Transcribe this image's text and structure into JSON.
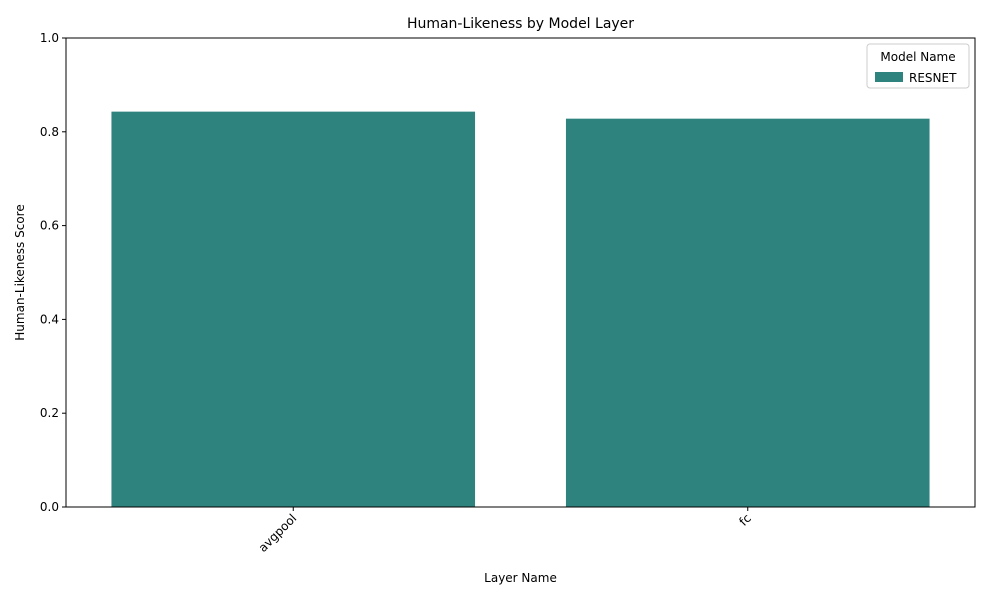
{
  "chart_data": {
    "type": "bar",
    "title": "Human-Likeness by Model Layer",
    "xlabel": "Layer Name",
    "ylabel": "Human-Likeness Score",
    "categories": [
      "avgpool",
      "fc"
    ],
    "series": [
      {
        "name": "RESNET",
        "values": [
          0.843,
          0.828
        ],
        "color": "#2e837e"
      }
    ],
    "ylim": [
      0,
      1.0
    ],
    "yticks": [
      0.0,
      0.2,
      0.4,
      0.6,
      0.8,
      1.0
    ],
    "ytick_labels": [
      "0.0",
      "0.2",
      "0.4",
      "0.6",
      "0.8",
      "1.0"
    ],
    "grid": false,
    "legend": {
      "title": "Model Name",
      "placement": "top-right"
    },
    "xtick_rotation_deg": 45
  }
}
